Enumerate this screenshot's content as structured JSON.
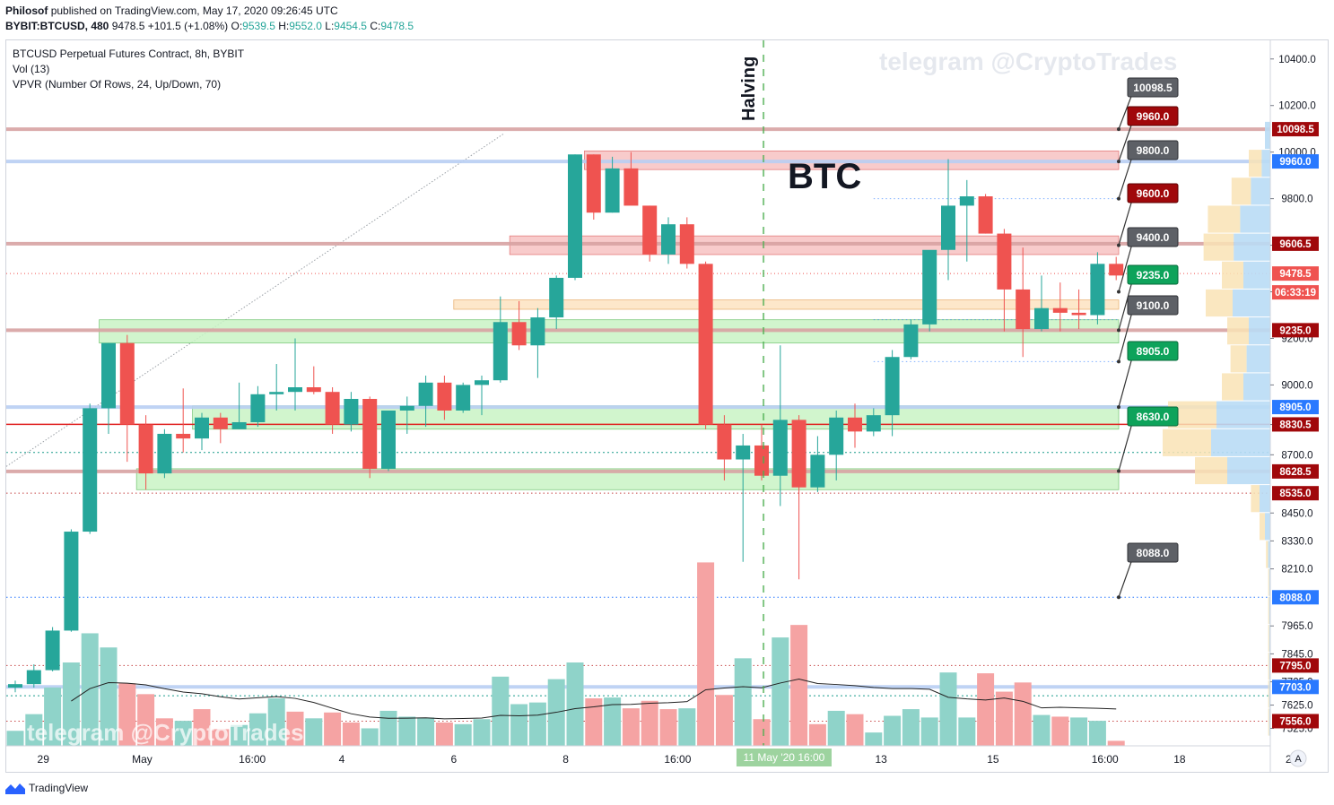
{
  "header": {
    "publisher": "Philosof",
    "published_text": "published on TradingView.com, May 17, 2020 09:26:45 UTC",
    "symbol": "BYBIT:BTCUSD, 480",
    "last": "9478.5",
    "change": "+101.5 (+1.08%)",
    "o_label": "O:",
    "o": "9539.5",
    "h_label": "H:",
    "h": "9552.0",
    "l_label": "L:",
    "l": "9454.5",
    "c_label": "C:",
    "c": "9478.5"
  },
  "legend": {
    "title": "BTCUSD Perpetual Futures Contract, 8h, BYBIT",
    "vol": "Vol (13)",
    "vpvr": "VPVR (Number Of Rows, 24, Up/Down, 70)"
  },
  "watermark": "telegram @CryptoTrades",
  "footer": {
    "brand": "TradingView"
  },
  "colors": {
    "up": "#26a69a",
    "down": "#ef5350",
    "up_vol": "#8fd3c9",
    "down_vol": "#f5a3a3",
    "blue_axis": "#2962ff"
  },
  "chart_data": {
    "type": "candlestick",
    "title": "BTC",
    "annotation": "Halving",
    "timeframe": "8h",
    "ylim": [
      7450,
      10480
    ],
    "y_ticks": [
      10400,
      10200,
      10000,
      9800,
      9600,
      9400,
      9200,
      9000,
      8830,
      8700,
      8450,
      8330,
      8210,
      7965,
      7845,
      7725,
      7625,
      7525
    ],
    "x_ticks": [
      {
        "i": 1.5,
        "label": "29"
      },
      {
        "i": 6.8,
        "label": "May"
      },
      {
        "i": 12.7,
        "label": "16:00"
      },
      {
        "i": 17.5,
        "label": "4"
      },
      {
        "i": 23.5,
        "label": "6"
      },
      {
        "i": 29.5,
        "label": "8"
      },
      {
        "i": 35.5,
        "label": "16:00"
      },
      {
        "i": 41.2,
        "label": "11 May '20   16:00",
        "highlight": true
      },
      {
        "i": 46.4,
        "label": "13"
      },
      {
        "i": 52.4,
        "label": "15"
      },
      {
        "i": 58.4,
        "label": "16:00"
      },
      {
        "i": 62.4,
        "label": "18"
      },
      {
        "i": 68.4,
        "label": "20"
      }
    ],
    "axis_badge": "A",
    "candles": [
      [
        7700,
        7730,
        7680,
        7715
      ],
      [
        7715,
        7800,
        7700,
        7775
      ],
      [
        7775,
        7960,
        7770,
        7945
      ],
      [
        7945,
        8380,
        7940,
        8370
      ],
      [
        8370,
        8920,
        8360,
        8900
      ],
      [
        8900,
        9180,
        8790,
        9180
      ],
      [
        9180,
        9215,
        8670,
        8830
      ],
      [
        8830,
        8870,
        8550,
        8620
      ],
      [
        8620,
        8810,
        8600,
        8790
      ],
      [
        8790,
        8985,
        8710,
        8770
      ],
      [
        8770,
        8880,
        8720,
        8860
      ],
      [
        8860,
        8880,
        8750,
        8810
      ],
      [
        8810,
        9010,
        8810,
        8840
      ],
      [
        8840,
        8995,
        8820,
        8960
      ],
      [
        8960,
        9090,
        8890,
        8970
      ],
      [
        8970,
        9200,
        8890,
        8990
      ],
      [
        8990,
        9080,
        8960,
        8970
      ],
      [
        8970,
        8990,
        8790,
        8830
      ],
      [
        8830,
        8970,
        8800,
        8940
      ],
      [
        8940,
        8950,
        8600,
        8640
      ],
      [
        8640,
        8890,
        8630,
        8890
      ],
      [
        8890,
        8950,
        8790,
        8910
      ],
      [
        8910,
        9040,
        8820,
        9010
      ],
      [
        9010,
        9040,
        8850,
        8890
      ],
      [
        8890,
        9010,
        8880,
        9000
      ],
      [
        9000,
        9040,
        8870,
        9020
      ],
      [
        9020,
        9380,
        9010,
        9270
      ],
      [
        9270,
        9360,
        9150,
        9170
      ],
      [
        9170,
        9330,
        9030,
        9290
      ],
      [
        9290,
        9470,
        9240,
        9460
      ],
      [
        9460,
        9990,
        9450,
        9990
      ],
      [
        9990,
        9990,
        9710,
        9740
      ],
      [
        9740,
        9980,
        9740,
        9930
      ],
      [
        9930,
        10000,
        9780,
        9770
      ],
      [
        9770,
        9770,
        9530,
        9560
      ],
      [
        9560,
        9720,
        9520,
        9690
      ],
      [
        9690,
        9720,
        9500,
        9520
      ],
      [
        9520,
        9530,
        8810,
        8830
      ],
      [
        8830,
        8870,
        8590,
        8680
      ],
      [
        8680,
        8790,
        8240,
        8740
      ],
      [
        8740,
        8830,
        8590,
        8610
      ],
      [
        8610,
        9170,
        8480,
        8850
      ],
      [
        8850,
        8870,
        8165,
        8560
      ],
      [
        8560,
        8780,
        8540,
        8700
      ],
      [
        8700,
        8890,
        8590,
        8860
      ],
      [
        8860,
        8920,
        8730,
        8800
      ],
      [
        8800,
        8900,
        8780,
        8870
      ],
      [
        8870,
        9150,
        8780,
        9120
      ],
      [
        9120,
        9280,
        9110,
        9260
      ],
      [
        9260,
        9570,
        9230,
        9580
      ],
      [
        9580,
        9970,
        9450,
        9770
      ],
      [
        9770,
        9880,
        9530,
        9810
      ],
      [
        9810,
        9820,
        9650,
        9650
      ],
      [
        9650,
        9670,
        9230,
        9410
      ],
      [
        9410,
        9590,
        9120,
        9240
      ],
      [
        9240,
        9470,
        9230,
        9330
      ],
      [
        9330,
        9440,
        9230,
        9310
      ],
      [
        9310,
        9410,
        9240,
        9300
      ],
      [
        9300,
        9570,
        9260,
        9520
      ],
      [
        9520,
        9550,
        9450,
        9470
      ]
    ],
    "volume": [
      [
        1.8,
        1
      ],
      [
        3.8,
        1
      ],
      [
        7.0,
        1
      ],
      [
        10.0,
        1
      ],
      [
        13.5,
        1
      ],
      [
        11.8,
        1
      ],
      [
        7.5,
        0
      ],
      [
        6.2,
        0
      ],
      [
        3.3,
        0
      ],
      [
        3.0,
        1
      ],
      [
        4.4,
        0
      ],
      [
        2.0,
        0
      ],
      [
        2.5,
        1
      ],
      [
        3.9,
        1
      ],
      [
        5.7,
        1
      ],
      [
        4.1,
        0
      ],
      [
        3.3,
        1
      ],
      [
        4.0,
        0
      ],
      [
        2.8,
        0
      ],
      [
        2.1,
        1
      ],
      [
        4.2,
        1
      ],
      [
        3.5,
        1
      ],
      [
        3.4,
        1
      ],
      [
        2.8,
        0
      ],
      [
        2.6,
        1
      ],
      [
        3.2,
        1
      ],
      [
        8.3,
        1
      ],
      [
        5.0,
        1
      ],
      [
        5.2,
        1
      ],
      [
        8.0,
        1
      ],
      [
        10.0,
        1
      ],
      [
        5.7,
        0
      ],
      [
        5.8,
        1
      ],
      [
        4.5,
        0
      ],
      [
        5.4,
        0
      ],
      [
        4.4,
        0
      ],
      [
        4.5,
        1
      ],
      [
        22.0,
        0
      ],
      [
        6.1,
        0
      ],
      [
        10.5,
        1
      ],
      [
        3.2,
        0
      ],
      [
        13.0,
        1
      ],
      [
        14.5,
        0
      ],
      [
        2.6,
        0
      ],
      [
        4.2,
        1
      ],
      [
        3.8,
        0
      ],
      [
        1.6,
        1
      ],
      [
        3.6,
        1
      ],
      [
        4.4,
        1
      ],
      [
        3.4,
        1
      ],
      [
        8.8,
        1
      ],
      [
        3.4,
        1
      ],
      [
        8.7,
        0
      ],
      [
        6.5,
        0
      ],
      [
        7.6,
        0
      ],
      [
        3.7,
        1
      ],
      [
        3.5,
        0
      ],
      [
        3.4,
        1
      ],
      [
        3.0,
        1
      ],
      [
        0.6,
        0
      ]
    ],
    "price_levels": [
      {
        "value": 10098.5,
        "label": "10098.5",
        "color": "#9a1a1a",
        "badge_style": "red"
      },
      {
        "value": 9960.0,
        "label": "9960.0",
        "color": "#2979ff",
        "badge_style": "blue"
      },
      {
        "value": 9606.5,
        "label": "9606.5",
        "color": "#9a1a1a",
        "badge_style": "red"
      },
      {
        "value": 9478.5,
        "label": "9478.5",
        "color": "#ef5350",
        "badge_style": "last"
      },
      {
        "value": 9235.0,
        "label": "9235.0",
        "color": "#9a1a1a",
        "badge_style": "red"
      },
      {
        "value": 8905.0,
        "label": "8905.0",
        "color": "#2979ff",
        "badge_style": "blue"
      },
      {
        "value": 8830.5,
        "label": "8830.5",
        "color": "#cc0000",
        "badge_style": "red"
      },
      {
        "value": 8628.5,
        "label": "8628.5",
        "color": "#9a1a1a",
        "badge_style": "red"
      },
      {
        "value": 8535.0,
        "label": "8535.0",
        "color": "#9a1a1a",
        "badge_style": "red"
      },
      {
        "value": 8088.0,
        "label": "8088.0",
        "color": "#2979ff",
        "badge_style": "blue"
      },
      {
        "value": 7795.0,
        "label": "7795.0",
        "color": "#9a1a1a",
        "badge_style": "red"
      },
      {
        "value": 7703.0,
        "label": "7703.0",
        "color": "#2979ff",
        "badge_style": "blue"
      },
      {
        "value": 7556.0,
        "label": "7556.0",
        "color": "#9a1a1a",
        "badge_style": "red"
      }
    ],
    "countdown": "06:33:19",
    "callouts": [
      {
        "label": "10098.5",
        "value": 10098.5,
        "style": "grey"
      },
      {
        "label": "9960.0",
        "value": 9960.0,
        "style": "darkred"
      },
      {
        "label": "9800.0",
        "value": 9800.0,
        "style": "grey"
      },
      {
        "label": "9600.0",
        "value": 9600.0,
        "style": "darkred"
      },
      {
        "label": "9400.0",
        "value": 9400.0,
        "style": "grey"
      },
      {
        "label": "9235.0",
        "value": 9235.0,
        "style": "green"
      },
      {
        "label": "9100.0",
        "value": 9100.0,
        "style": "grey"
      },
      {
        "label": "8905.0",
        "value": 8905.0,
        "style": "green"
      },
      {
        "label": "8630.0",
        "value": 8630.0,
        "style": "green"
      },
      {
        "label": "8088.0",
        "value": 8088.0,
        "style": "grey"
      }
    ],
    "zones": [
      {
        "from_i": 30.5,
        "to_i": 62,
        "y_low": 9925,
        "y_high": 10005,
        "kind": "red"
      },
      {
        "from_i": 26.5,
        "to_i": 62,
        "y_low": 9560,
        "y_high": 9640,
        "kind": "red"
      },
      {
        "from_i": 23.5,
        "to_i": 62,
        "y_low": 9325,
        "y_high": 9365,
        "kind": "orange"
      },
      {
        "from_i": 4.5,
        "to_i": 62,
        "y_low": 9180,
        "y_high": 9280,
        "kind": "green"
      },
      {
        "from_i": 9.5,
        "to_i": 62,
        "y_low": 8810,
        "y_high": 8910,
        "kind": "green"
      },
      {
        "from_i": 6.5,
        "to_i": 62,
        "y_low": 8550,
        "y_high": 8640,
        "kind": "green"
      }
    ],
    "vpvr_rows": [
      [
        10070,
        0.05,
        0.0
      ],
      [
        9950,
        0.08,
        0.12
      ],
      [
        9830,
        0.18,
        0.18
      ],
      [
        9710,
        0.28,
        0.3
      ],
      [
        9590,
        0.34,
        0.28
      ],
      [
        9470,
        0.25,
        0.2
      ],
      [
        9350,
        0.35,
        0.25
      ],
      [
        9230,
        0.2,
        0.2
      ],
      [
        9110,
        0.22,
        0.15
      ],
      [
        8990,
        0.25,
        0.2
      ],
      [
        8870,
        0.5,
        0.45
      ],
      [
        8750,
        0.55,
        0.45
      ],
      [
        8630,
        0.4,
        0.3
      ],
      [
        8510,
        0.1,
        0.08
      ],
      [
        8390,
        0.05,
        0.05
      ],
      [
        8270,
        0.02,
        0.02
      ],
      [
        8150,
        0.01,
        0.01
      ],
      [
        8030,
        0.01,
        0.01
      ],
      [
        7910,
        0.01,
        0.01
      ],
      [
        7790,
        0.01,
        0.01
      ],
      [
        7670,
        0.01,
        0.01
      ],
      [
        7550,
        0.01,
        0.01
      ]
    ]
  }
}
